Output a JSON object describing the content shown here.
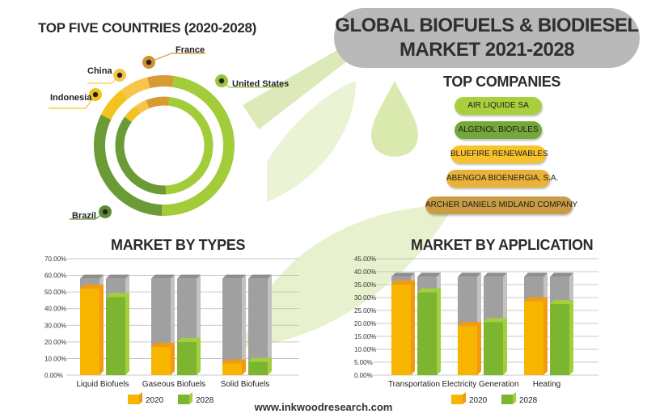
{
  "title_line1": "GLOBAL BIOFUELS & BIODIESEL",
  "title_line2": "MARKET 2021-2028",
  "countries_title": "TOP FIVE COUNTRIES (2020-2028)",
  "companies_title": "TOP COMPANIES",
  "companies": [
    {
      "name": "AIR LIQUIDE SA",
      "color": "#a9cf3c"
    },
    {
      "name": "ALGENOL BIOFULES",
      "color": "#74a83a"
    },
    {
      "name": "BLUEFIRE RENEWABLES",
      "color": "#f7c22a"
    },
    {
      "name": "ABENGOA BIOENERGIA, S.A.",
      "color": "#eab23a"
    },
    {
      "name": "ARCHER DANIELS MIDLAND COMPANY",
      "color": "#c99c45"
    }
  ],
  "countries": [
    {
      "name": "France",
      "color": "#d89a33",
      "marker_color": "#cf9131"
    },
    {
      "name": "United States",
      "color": "#a3cc3a",
      "marker_color": "#9bc437"
    },
    {
      "name": "Brazil",
      "color": "#6b9b36",
      "marker_color": "#5d8d30"
    },
    {
      "name": "Indonesia",
      "color": "#f3c21f",
      "marker_color": "#f3c21f"
    },
    {
      "name": "China",
      "color": "#f6c64a",
      "marker_color": "#f6c64a"
    }
  ],
  "footer_url": "www.inkwoodresearch.com",
  "colors": {
    "y2020": "#f7b500",
    "y2020_side": "#f39a10",
    "y2028": "#7cb52f",
    "y2028_side": "#a3cf3e",
    "ghost": "#a0a0a0",
    "ghost_side": "#c2c2c2",
    "banner": "#b9b9b9"
  },
  "chart_data": [
    {
      "type": "bar",
      "title": "MARKET BY TYPES",
      "categories": [
        "Liquid Biofuels",
        "Gaseous Biofuels",
        "Solid Biofuels"
      ],
      "series": [
        {
          "name": "2020",
          "values": [
            52,
            17,
            7
          ]
        },
        {
          "name": "2028",
          "values": [
            47,
            20,
            8
          ]
        }
      ],
      "y_ticks": [
        "0.00%",
        "10.00%",
        "20.00%",
        "30.00%",
        "40.00%",
        "50.00%",
        "60.00%",
        "70.00%"
      ],
      "ylim": [
        0,
        70
      ],
      "y_max_bar": 58,
      "legend": [
        "2020",
        "2028"
      ],
      "legend_position": "bottom",
      "grid": true
    },
    {
      "type": "bar",
      "title": "MARKET BY APPLICATION",
      "categories": [
        "Transportation",
        "Electricity Generation",
        "Heating"
      ],
      "series": [
        {
          "name": "2020",
          "values": [
            35,
            19,
            28.5
          ]
        },
        {
          "name": "2028",
          "values": [
            32,
            20.5,
            27.5
          ]
        }
      ],
      "y_ticks": [
        "0.00%",
        "5.00%",
        "10.00%",
        "15.00%",
        "20.00%",
        "25.00%",
        "30.00%",
        "35.00%",
        "40.00%",
        "45.00%"
      ],
      "ylim": [
        0,
        45
      ],
      "y_max_bar": 38,
      "legend": [
        "2020",
        "2028"
      ],
      "legend_position": "bottom",
      "grid": true
    }
  ]
}
